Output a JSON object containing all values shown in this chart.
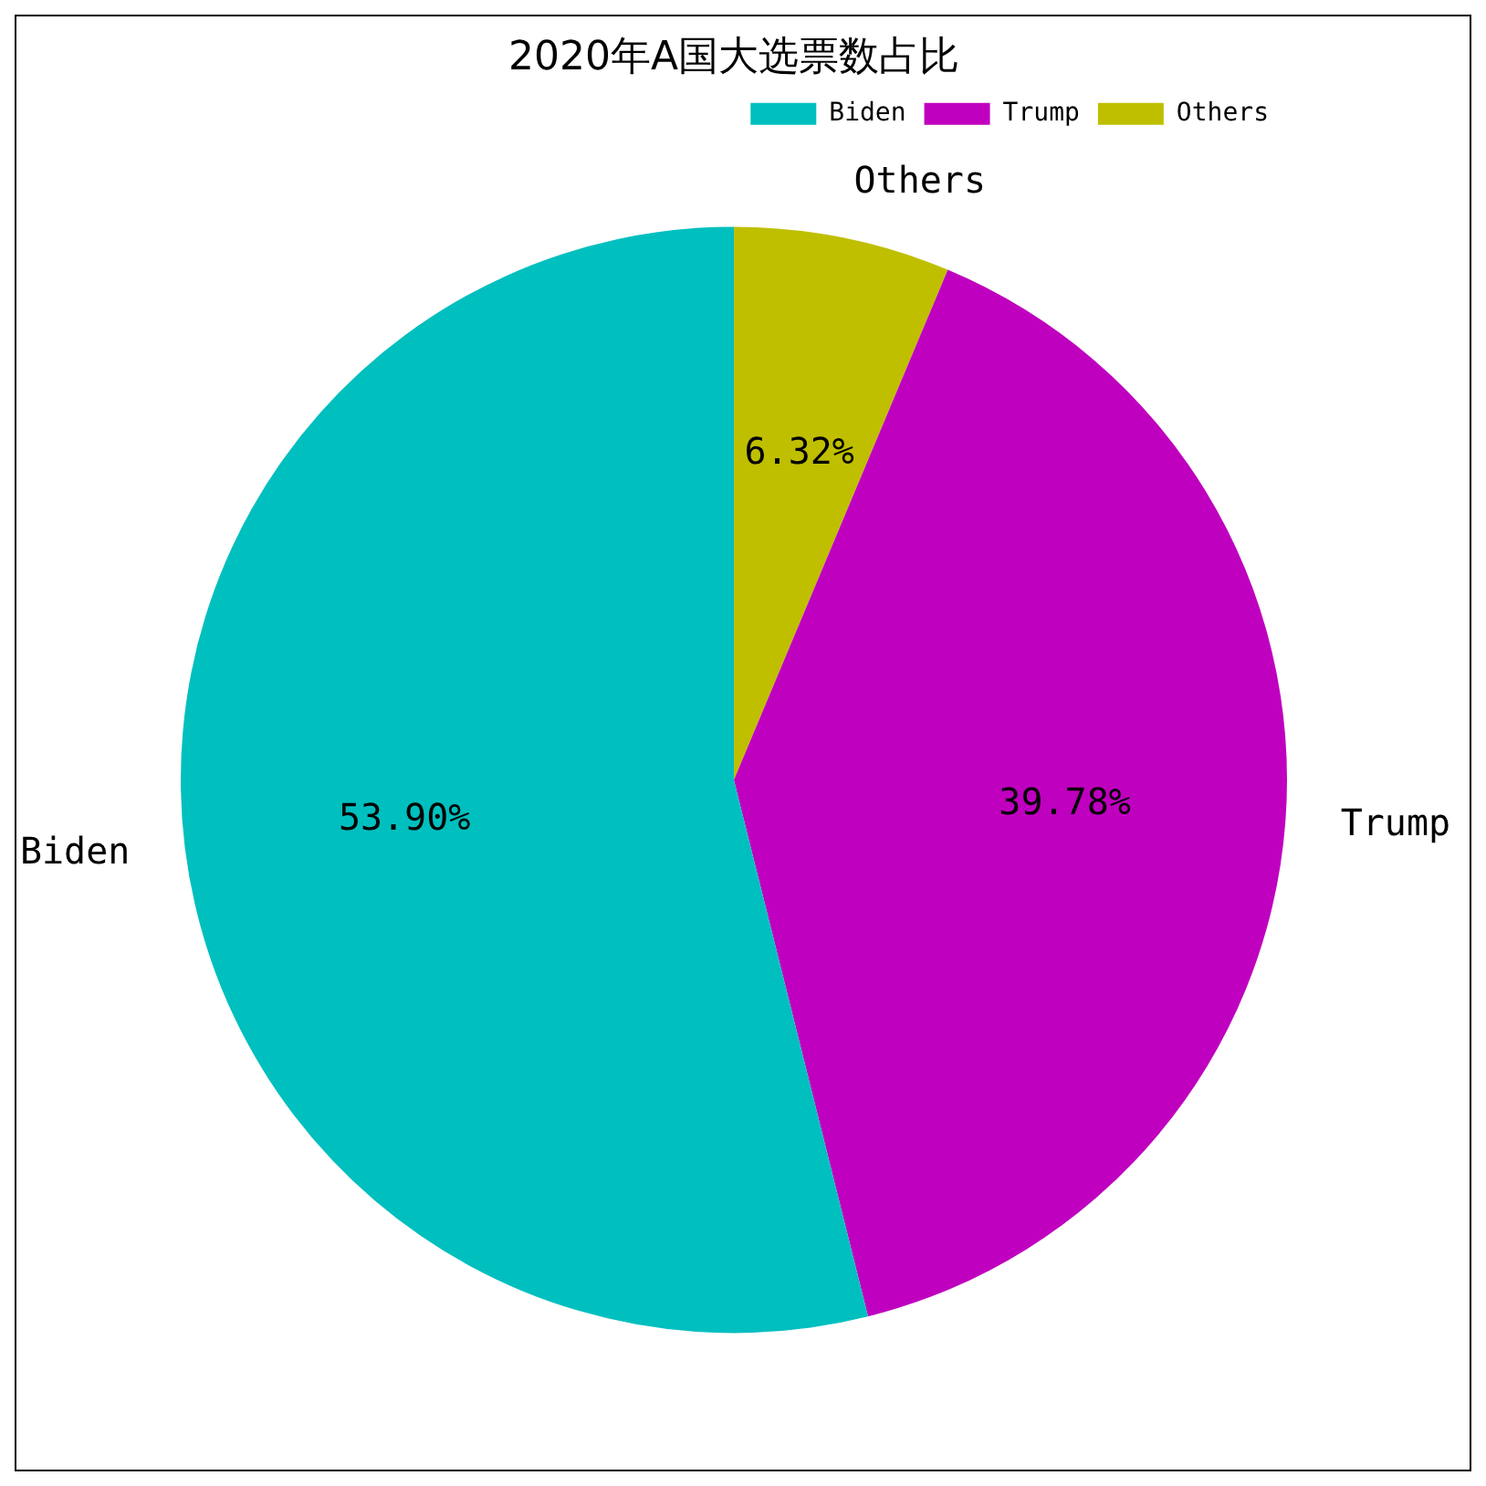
{
  "chart_data": {
    "type": "pie",
    "title": "2020年A国大选票数占比",
    "categories": [
      "Biden",
      "Trump",
      "Others"
    ],
    "values": [
      53.9,
      39.78,
      6.32
    ],
    "colors": [
      "#00bfbf",
      "#bf00bf",
      "#bfbf00"
    ],
    "value_labels": [
      "53.90%",
      "39.78%",
      "6.32%"
    ],
    "legend": "top right"
  }
}
